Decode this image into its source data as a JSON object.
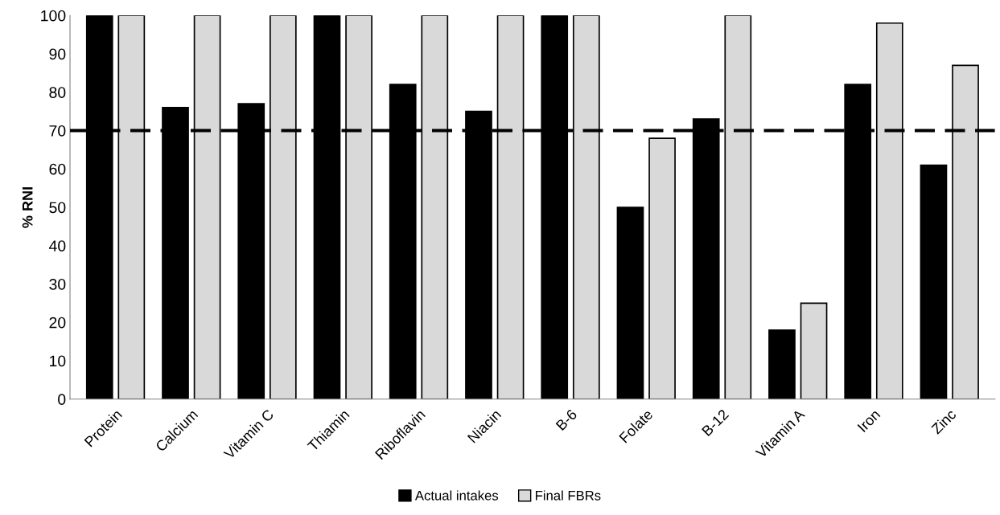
{
  "chart_data": {
    "type": "bar",
    "ylabel": "% RNI",
    "categories": [
      "Protein",
      "Calcium",
      "Vitamin C",
      "Thiamin",
      "Riboflavin",
      "Niacin",
      "B-6",
      "Folate",
      "B-12",
      "Vitamin A",
      "Iron",
      "Zinc"
    ],
    "series": [
      {
        "name": "Actual intakes",
        "color": "#000000",
        "values": [
          100,
          76,
          77,
          100,
          82,
          75,
          100,
          50,
          73,
          18,
          82,
          61
        ]
      },
      {
        "name": "Final FBRs",
        "color": "#d9d9d9",
        "values": [
          100,
          100,
          100,
          100,
          100,
          100,
          100,
          68,
          100,
          25,
          98,
          87
        ]
      }
    ],
    "ylim": [
      0,
      100
    ],
    "yticks": [
      0,
      10,
      20,
      30,
      40,
      50,
      60,
      70,
      80,
      90,
      100
    ],
    "ref_lines": [
      {
        "axis": "y",
        "value": 70,
        "color": "#000000",
        "line_style": "dashed"
      }
    ],
    "grid": false,
    "legend": "bottom"
  }
}
